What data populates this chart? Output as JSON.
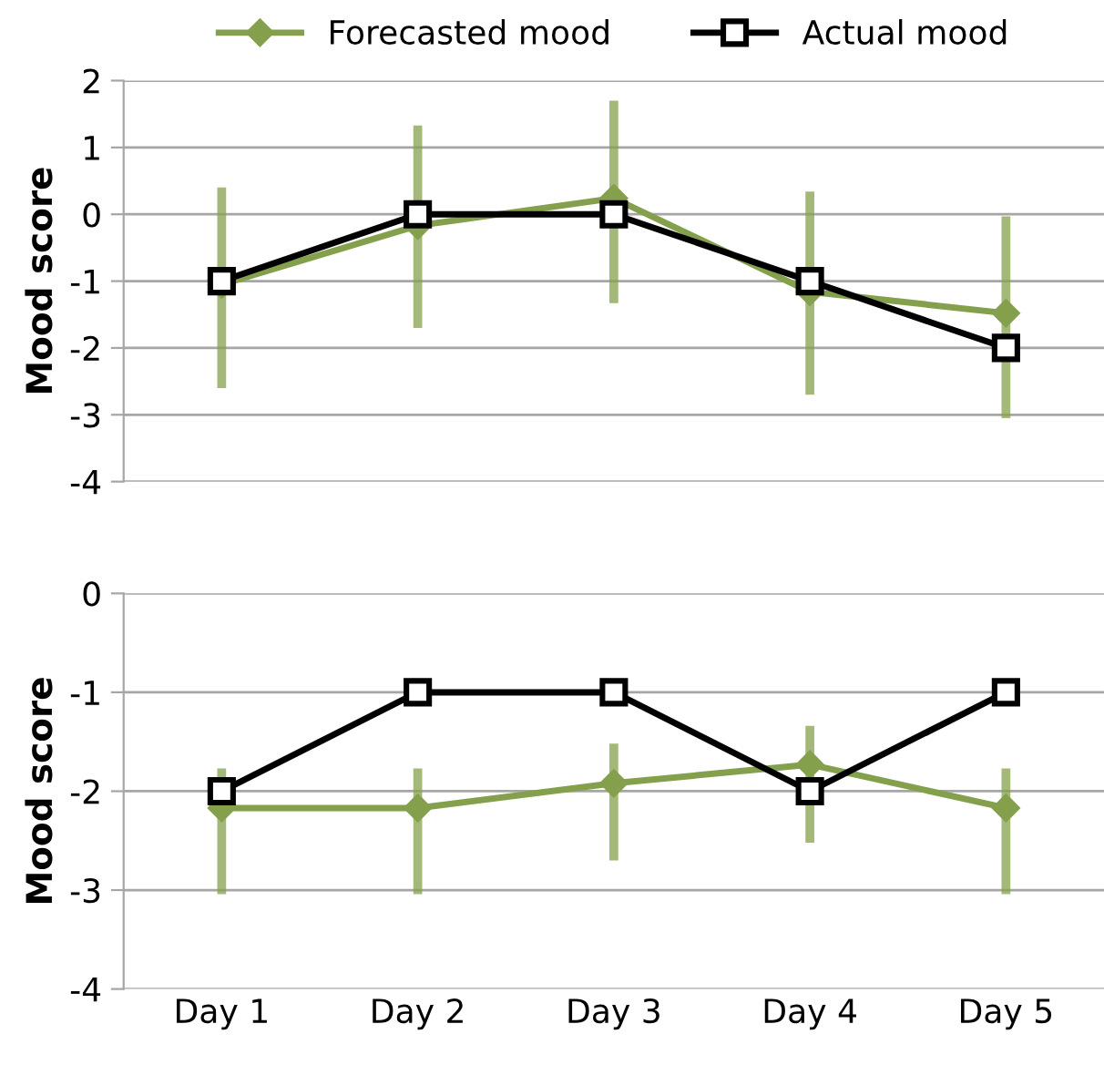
{
  "chart_data": [
    {
      "type": "line",
      "ylabel": "Mood score",
      "categories": [
        null,
        null,
        null,
        null,
        null
      ],
      "ylim": [
        -4,
        2
      ],
      "yticks": [
        -4,
        -3,
        -2,
        -1,
        0,
        1,
        2
      ],
      "grid": "y",
      "legend": "top",
      "tick_labels": "y",
      "series": [
        {
          "name": "Forecasted mood",
          "color": "#84a04c",
          "marker": "diamond",
          "values": [
            -1.05,
            -0.17,
            0.24,
            -1.16,
            -1.48
          ],
          "errors": [
            [
              -2.6,
              0.4
            ],
            [
              -1.7,
              1.33
            ],
            [
              -1.33,
              1.7
            ],
            [
              -2.7,
              0.34
            ],
            [
              -3.05,
              -0.03
            ]
          ]
        },
        {
          "name": "Actual mood",
          "color": "#000000",
          "marker": "square",
          "values": [
            -1,
            0,
            0,
            -1,
            -2
          ]
        }
      ]
    },
    {
      "type": "line",
      "ylabel": "Mood score",
      "categories": [
        "Day 1",
        "Day 2",
        "Day 3",
        "Day 4",
        "Day 5"
      ],
      "ylim": [
        -4,
        0
      ],
      "yticks": [
        -4,
        -3,
        -2,
        -1,
        0
      ],
      "grid": "y",
      "series": [
        {
          "color": "#84a04c",
          "marker": "diamond",
          "values": [
            -2.17,
            -2.17,
            -1.92,
            -1.73,
            -2.17
          ],
          "errors": [
            [
              -3.04,
              -1.77
            ],
            [
              -3.04,
              -1.77
            ],
            [
              -2.7,
              -1.52
            ],
            [
              -2.52,
              -1.34
            ],
            [
              -3.04,
              -1.77
            ]
          ]
        },
        {
          "color": "#000000",
          "marker": "square",
          "values": [
            -2,
            -1,
            -1,
            -2,
            -1
          ]
        }
      ]
    }
  ]
}
